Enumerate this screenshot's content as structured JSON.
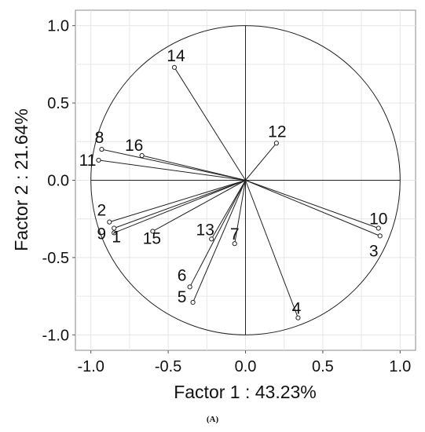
{
  "chart_data": {
    "type": "scatter",
    "subtype": "pca-correlation-circle",
    "xlabel": "Factor 1 : 43.23%",
    "ylabel": "Factor 2 : 21.64%",
    "xlim": [
      -1.1,
      1.1
    ],
    "ylim": [
      -1.1,
      1.1
    ],
    "xticks": [
      "-1.0",
      "-0.5",
      "0.0",
      "0.5",
      "1.0"
    ],
    "yticks": [
      "1.0",
      "0.5",
      "0.0",
      "-0.5",
      "-1.0"
    ],
    "grid": true,
    "unit_circle": true,
    "points": [
      {
        "label": "1",
        "x": -0.85,
        "y": -0.34
      },
      {
        "label": "2",
        "x": -0.88,
        "y": -0.27
      },
      {
        "label": "3",
        "x": 0.87,
        "y": -0.36
      },
      {
        "label": "4",
        "x": 0.34,
        "y": -0.89
      },
      {
        "label": "5",
        "x": -0.34,
        "y": -0.79
      },
      {
        "label": "6",
        "x": -0.36,
        "y": -0.69
      },
      {
        "label": "7",
        "x": -0.07,
        "y": -0.41
      },
      {
        "label": "8",
        "x": -0.93,
        "y": 0.2
      },
      {
        "label": "9",
        "x": -0.85,
        "y": -0.31
      },
      {
        "label": "10",
        "x": 0.86,
        "y": -0.31
      },
      {
        "label": "11",
        "x": -0.95,
        "y": 0.13
      },
      {
        "label": "12",
        "x": 0.2,
        "y": 0.24
      },
      {
        "label": "13",
        "x": -0.22,
        "y": -0.38
      },
      {
        "label": "14",
        "x": -0.46,
        "y": 0.73
      },
      {
        "label": "15",
        "x": -0.6,
        "y": -0.33
      },
      {
        "label": "16",
        "x": -0.67,
        "y": 0.16
      }
    ]
  },
  "panel_label": "(A)"
}
